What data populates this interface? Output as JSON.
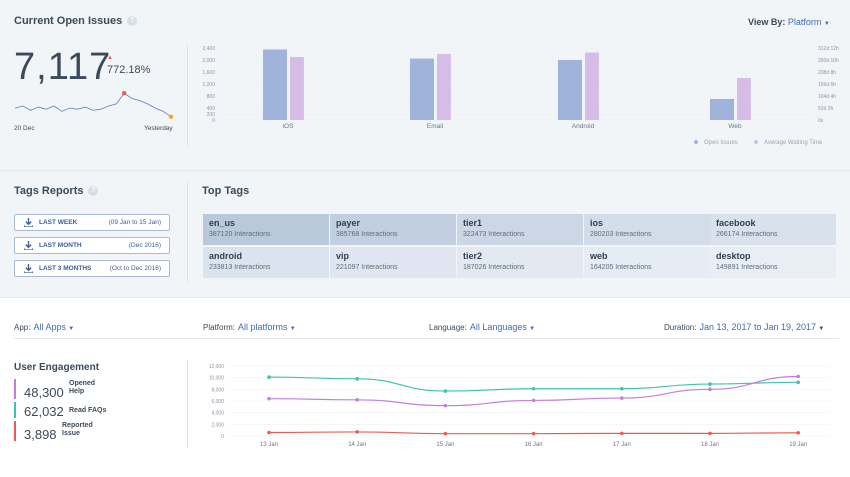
{
  "open_issues": {
    "title": "Current Open Issues",
    "help_icon": "help-icon",
    "count": "7,117",
    "change": "772.18%",
    "spark_start_label": "20 Dec",
    "spark_end_label": "Yesterday",
    "view_by_label": "View By:",
    "view_by_value": "Platform"
  },
  "platform_chart": {
    "chart_data": {
      "type": "bar",
      "categories": [
        "iOS",
        "Email",
        "Android",
        "Web"
      ],
      "series": [
        {
          "name": "Open Issues",
          "values": [
            2350,
            2050,
            2000,
            700
          ],
          "color": "#9fb3db"
        },
        {
          "name": "Average Waiting Time",
          "values": [
            2100,
            2200,
            2250,
            1400
          ],
          "color": "#d5bde8"
        }
      ],
      "ylim": [
        0,
        2400
      ],
      "yticks": [
        "0",
        "200",
        "400",
        "800",
        "1,200",
        "1,600",
        "2,000",
        "2,400"
      ],
      "y2ticks": [
        "0s",
        "52d 2h",
        "104d 4h",
        "156d 6h",
        "208d 8h",
        "260d 10h",
        "312d 12h"
      ],
      "legend": "bottom-right"
    }
  },
  "tags_reports": {
    "title": "Tags Reports",
    "buttons": [
      {
        "label": "LAST WEEK",
        "range": "(09 Jan to 15 Jan)"
      },
      {
        "label": "LAST MONTH",
        "range": "(Dec 2016)"
      },
      {
        "label": "LAST 3 MONTHS",
        "range": "(Oct to Dec 2016)"
      }
    ]
  },
  "top_tags": {
    "title": "Top Tags",
    "tags": [
      {
        "name": "en_us",
        "count": "387120 Interactions"
      },
      {
        "name": "payer",
        "count": "385768 Interactions"
      },
      {
        "name": "tier1",
        "count": "322473 Interactions"
      },
      {
        "name": "ios",
        "count": "280203 Interactions"
      },
      {
        "name": "facebook",
        "count": "266174 Interactions"
      },
      {
        "name": "android",
        "count": "233813 Interactions"
      },
      {
        "name": "vip",
        "count": "221097 Interactions"
      },
      {
        "name": "tier2",
        "count": "187026 Interactions"
      },
      {
        "name": "web",
        "count": "164205 Interactions"
      },
      {
        "name": "desktop",
        "count": "149891 Interactions"
      }
    ]
  },
  "filters": {
    "app_label": "App:",
    "app_value": "All Apps",
    "platform_label": "Platform:",
    "platform_value": "All platforms",
    "language_label": "Language:",
    "language_value": "All Languages",
    "duration_label": "Duration:",
    "duration_value": "Jan 13, 2017 to Jan 19, 2017"
  },
  "engagement": {
    "title": "User Engagement",
    "items": [
      {
        "value": "48,300",
        "label1": "Opened",
        "label2": "Help",
        "color": "#c37fe0"
      },
      {
        "value": "62,032",
        "label1": "Read FAQs",
        "label2": "",
        "color": "#3fc3ae"
      },
      {
        "value": "3,898",
        "label1": "Reported",
        "label2": "Issue",
        "color": "#ee5a52"
      }
    ],
    "chart_data": {
      "type": "line",
      "x": [
        "13 Jan",
        "14 Jan",
        "15 Jan",
        "16 Jan",
        "17 Jan",
        "18 Jan",
        "19 Jan"
      ],
      "ylim": [
        0,
        12000
      ],
      "yticks": [
        "0",
        "2,000",
        "4,000",
        "6,000",
        "8,000",
        "10,000",
        "12,000"
      ],
      "series": [
        {
          "values": [
            10100,
            9800,
            7700,
            8100,
            8100,
            8900,
            9200
          ],
          "color": "#3fc3ae"
        },
        {
          "values": [
            6400,
            6200,
            5200,
            6100,
            6500,
            8000,
            10200
          ],
          "color": "#c37fe0"
        },
        {
          "values": [
            600,
            700,
            400,
            400,
            450,
            450,
            550
          ],
          "color": "#ee5a52"
        }
      ]
    }
  },
  "sparkline": {
    "values": [
      48,
      50,
      46,
      49,
      47,
      50,
      45,
      48,
      47,
      49,
      46,
      47,
      50,
      52,
      62,
      57,
      55,
      52,
      48,
      45,
      40
    ]
  }
}
